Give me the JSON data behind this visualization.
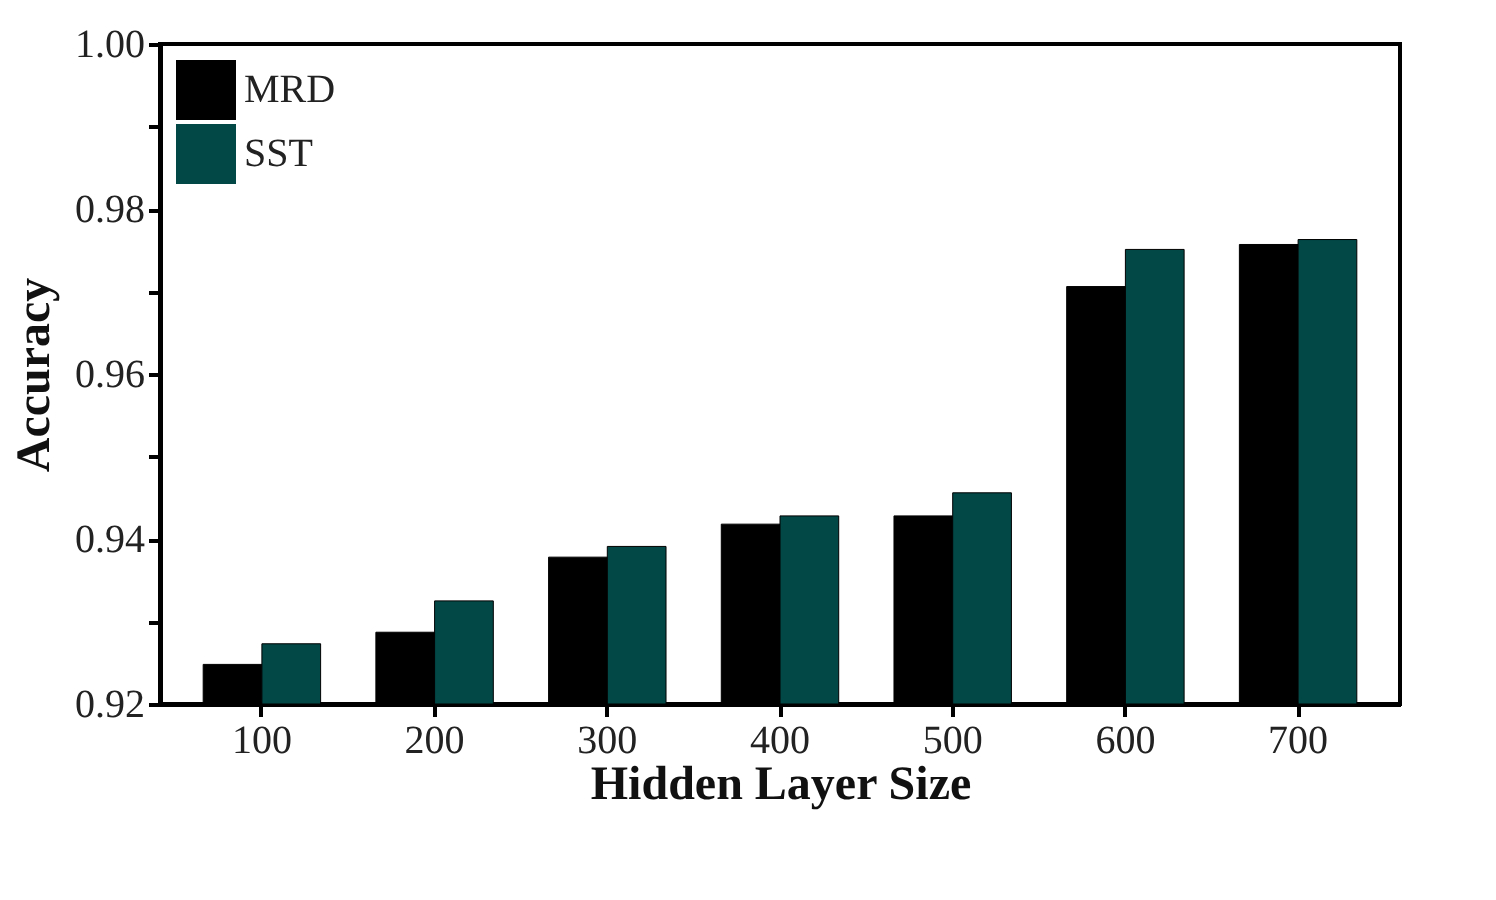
{
  "chart_data": {
    "type": "bar",
    "xlabel": "Hidden Layer Size",
    "ylabel": "Accuracy",
    "categories": [
      "100",
      "200",
      "300",
      "400",
      "500",
      "600",
      "700"
    ],
    "series": [
      {
        "name": "MRD",
        "color": "#000000",
        "values": [
          0.9248,
          0.9287,
          0.9378,
          0.9418,
          0.9428,
          0.9706,
          0.9757
        ]
      },
      {
        "name": "SST",
        "color": "#024846",
        "values": [
          0.9273,
          0.9325,
          0.9391,
          0.9428,
          0.9456,
          0.9751,
          0.9763
        ]
      }
    ],
    "ylim": [
      0.92,
      1.0
    ],
    "yticks": [
      0.92,
      {
        "value": 0.93,
        "label": null
      },
      0.94,
      {
        "value": 0.95,
        "label": null
      },
      0.96,
      {
        "value": 0.97,
        "label": null
      },
      0.98,
      {
        "value": 0.99,
        "label": null
      },
      {
        "value": 1.0,
        "label": "1.00"
      }
    ],
    "legend": "top left",
    "grid": false
  }
}
